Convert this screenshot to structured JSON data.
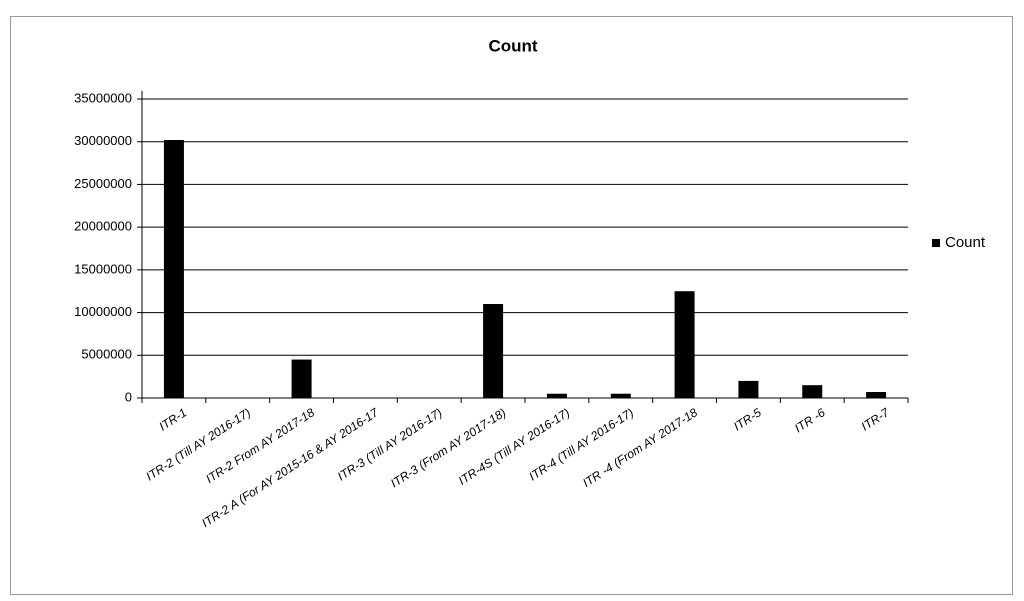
{
  "chart_data": {
    "type": "bar",
    "title": "Count",
    "categories": [
      "ITR-1",
      "ITR-2 (Till AY 2016-17)",
      "ITR-2 From AY 2017-18",
      "ITR-2 A (For AY 2015-16 & AY 2016-17",
      "ITR-3 (Till AY 2016-17)",
      "ITR-3 (From AY 2017-18)",
      "ITR-4S (Till AY 2016-17)",
      "ITR-4 (Till AY 2016-17)",
      "ITR -4 (From AY 2017-18",
      "ITR-5",
      "ITR -6",
      "ITR-7"
    ],
    "series": [
      {
        "name": "Count",
        "color": "#000000",
        "values": [
          30200000,
          0,
          4500000,
          0,
          0,
          11000000,
          500000,
          500000,
          12500000,
          2000000,
          1500000,
          700000
        ]
      }
    ],
    "ylim": [
      0,
      35000000
    ],
    "yticks": [
      0,
      5000000,
      10000000,
      15000000,
      20000000,
      25000000,
      30000000,
      35000000
    ],
    "grid": true,
    "legend": "right"
  }
}
